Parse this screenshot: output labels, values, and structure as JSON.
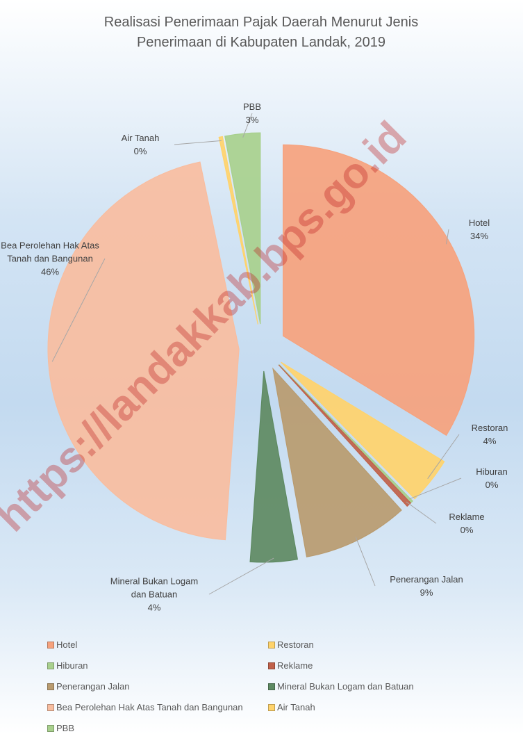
{
  "chart_data": {
    "type": "pie",
    "title": "Realisasi Penerimaan Pajak Daerah Menurut Jenis Penerimaan di Kabupaten Landak, 2019",
    "categories": [
      "Hotel",
      "Restoran",
      "Hiburan",
      "Reklame",
      "Penerangan Jalan",
      "Mineral Bukan Logam dan Batuan",
      "Bea Perolehan Hak Atas Tanah dan Bangunan",
      "Air Tanah",
      "PBB"
    ],
    "values": [
      34,
      4,
      0.2,
      0.4,
      9,
      4,
      46,
      0.3,
      3
    ],
    "value_labels": [
      "34%",
      "4%",
      "0%",
      "0%",
      "9%",
      "4%",
      "46%",
      "0%",
      "3%"
    ],
    "colors": [
      "#f6a27d",
      "#ffd36b",
      "#a8d08d",
      "#c0614a",
      "#b99b6f",
      "#5e8a62",
      "#f8bd9f",
      "#ffd36b",
      "#a8d08d"
    ],
    "legend": "bottom",
    "watermark": "https://landakkab.bps.go.id"
  }
}
